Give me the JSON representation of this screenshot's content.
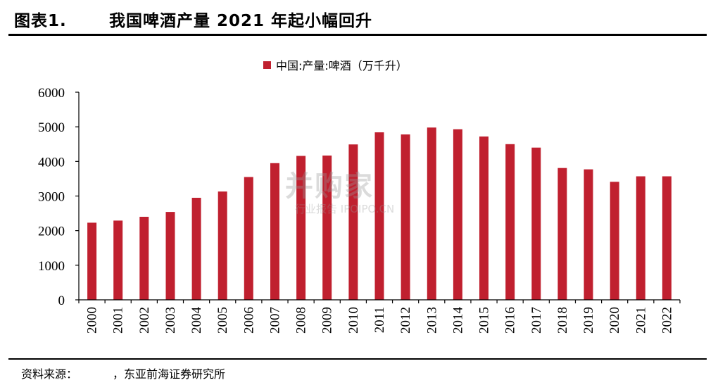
{
  "header": {
    "figure_label": "图表1.",
    "figure_title": "我国啤酒产量 2021 年起小幅回升"
  },
  "footer": {
    "source_label": "资料来源：",
    "source_text": "，东亚前海证券研究所"
  },
  "watermark": {
    "main": "并购家",
    "sub": "行业报告 IPOIPO.CN"
  },
  "colors": {
    "bar": "#C0202F",
    "axis": "#000000"
  },
  "chart_data": {
    "type": "bar",
    "title": "",
    "xlabel": "",
    "ylabel": "",
    "legend_position": "top-center",
    "grid": false,
    "categories": [
      "2000",
      "2001",
      "2002",
      "2003",
      "2004",
      "2005",
      "2006",
      "2007",
      "2008",
      "2009",
      "2010",
      "2011",
      "2012",
      "2013",
      "2014",
      "2015",
      "2016",
      "2017",
      "2018",
      "2019",
      "2020",
      "2021",
      "2022"
    ],
    "series": [
      {
        "name": "中国:产量:啤酒（万千升）",
        "values": [
          2230,
          2290,
          2400,
          2540,
          2950,
          3130,
          3550,
          3950,
          4160,
          4170,
          4490,
          4840,
          4780,
          4980,
          4930,
          4720,
          4500,
          4400,
          3810,
          3770,
          3410,
          3570,
          3570
        ]
      }
    ],
    "ylim": [
      0,
      6000
    ],
    "yticks": [
      0,
      1000,
      2000,
      3000,
      4000,
      5000,
      6000
    ]
  }
}
